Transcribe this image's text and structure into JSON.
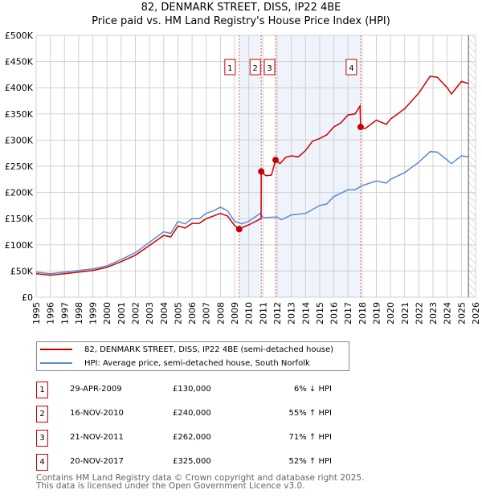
{
  "title_line1": "82, DENMARK STREET, DISS, IP22 4BE",
  "title_line2": "Price paid vs. HM Land Registry's House Price Index (HPI)",
  "chart_data": {
    "type": "line",
    "title": "82, DENMARK STREET, DISS, IP22 4BE — Price paid vs. HM Land Registry's House Price Index (HPI)",
    "xlim": [
      1995,
      2026
    ],
    "ylim": [
      0,
      500000
    ],
    "x_ticks": [
      "1995",
      "1996",
      "1997",
      "1998",
      "1999",
      "2000",
      "2001",
      "2002",
      "2003",
      "2004",
      "2005",
      "2006",
      "2007",
      "2008",
      "2009",
      "2010",
      "2011",
      "2012",
      "2013",
      "2014",
      "2015",
      "2016",
      "2017",
      "2018",
      "2019",
      "2020",
      "2021",
      "2022",
      "2023",
      "2024",
      "2025",
      "2026"
    ],
    "y_ticks": [
      {
        "v": 0,
        "label": "£0"
      },
      {
        "v": 50000,
        "label": "£50K"
      },
      {
        "v": 100000,
        "label": "£100K"
      },
      {
        "v": 150000,
        "label": "£150K"
      },
      {
        "v": 200000,
        "label": "£200K"
      },
      {
        "v": 250000,
        "label": "£250K"
      },
      {
        "v": 300000,
        "label": "£300K"
      },
      {
        "v": 350000,
        "label": "£350K"
      },
      {
        "v": 400000,
        "label": "£400K"
      },
      {
        "v": 450000,
        "label": "£450K"
      },
      {
        "v": 500000,
        "label": "£500K"
      }
    ],
    "grid": true,
    "shaded_periods": [
      [
        2009.33,
        2010.88
      ],
      [
        2011.89,
        2017.89
      ]
    ],
    "forecast_hatch_from": 2025.5,
    "series": [
      {
        "name": "82, DENMARK STREET, DISS, IP22 4BE (semi-detached house)",
        "color": "#cc0000",
        "x": [
          1995,
          1996,
          1997,
          1998,
          1999,
          2000,
          2001,
          2002,
          2003,
          2004,
          2004.5,
          2005,
          2005.5,
          2006,
          2006.5,
          2007,
          2007.5,
          2008,
          2008.5,
          2009,
          2009.33,
          2009.7,
          2010,
          2010.5,
          2010.87,
          2010.88,
          2011.2,
          2011.6,
          2011.89,
          2012.2,
          2012.6,
          2013,
          2013.5,
          2014,
          2014.5,
          2015,
          2015.5,
          2016,
          2016.5,
          2017,
          2017.5,
          2017.85,
          2017.89,
          2018.2,
          2019,
          2019.7,
          2020,
          2021,
          2022,
          2022.8,
          2023.3,
          2024,
          2024.3,
          2025,
          2025.5
        ],
        "y": [
          45000,
          42000,
          45000,
          48000,
          51000,
          57000,
          68000,
          80000,
          99000,
          118000,
          115000,
          136000,
          132000,
          141000,
          141000,
          150000,
          155000,
          160000,
          155000,
          137000,
          130000,
          135000,
          138000,
          145000,
          150000,
          240000,
          232000,
          233000,
          262000,
          255000,
          267000,
          270000,
          268000,
          280000,
          298000,
          303000,
          310000,
          325000,
          333000,
          348000,
          350000,
          365000,
          325000,
          322000,
          338000,
          330000,
          340000,
          360000,
          390000,
          422000,
          420000,
          400000,
          388000,
          412000,
          408000
        ]
      },
      {
        "name": "HPI: Average price, semi-detached house, South Norfolk",
        "color": "#5b8bd0",
        "x": [
          1995,
          1996,
          1997,
          1998,
          1999,
          2000,
          2001,
          2002,
          2003,
          2004,
          2004.5,
          2005,
          2005.5,
          2006,
          2006.5,
          2007,
          2007.5,
          2008,
          2008.5,
          2009,
          2009.5,
          2010,
          2010.8,
          2011,
          2012,
          2012.3,
          2013,
          2014,
          2015,
          2015.5,
          2016,
          2017,
          2017.5,
          2018,
          2019,
          2019.7,
          2020,
          2021,
          2022,
          2022.8,
          2023.3,
          2024,
          2024.3,
          2025,
          2025.5
        ],
        "y": [
          48000,
          45000,
          48000,
          51000,
          54000,
          60000,
          72000,
          85000,
          105000,
          125000,
          122000,
          145000,
          140000,
          150000,
          150000,
          160000,
          165000,
          172000,
          165000,
          145000,
          140000,
          145000,
          160000,
          152000,
          153000,
          148000,
          157000,
          160000,
          175000,
          178000,
          192000,
          205000,
          205000,
          213000,
          222000,
          218000,
          225000,
          238000,
          258000,
          278000,
          277000,
          262000,
          255000,
          270000,
          268000
        ]
      }
    ],
    "sales": [
      {
        "n": "1",
        "x": 2009.33,
        "y": 130000
      },
      {
        "n": "2",
        "x": 2010.88,
        "y": 240000
      },
      {
        "n": "3",
        "x": 2011.89,
        "y": 262000
      },
      {
        "n": "4",
        "x": 2017.89,
        "y": 325000
      }
    ]
  },
  "legend": [
    {
      "label": "82, DENMARK STREET, DISS, IP22 4BE (semi-detached house)",
      "color": "#cc0000"
    },
    {
      "label": "HPI: Average price, semi-detached house, South Norfolk",
      "color": "#5b8bd0"
    }
  ],
  "table": [
    {
      "n": "1",
      "date": "29-APR-2009",
      "price": "£130,000",
      "hpi": "6% ↓ HPI"
    },
    {
      "n": "2",
      "date": "16-NOV-2010",
      "price": "£240,000",
      "hpi": "55% ↑ HPI"
    },
    {
      "n": "3",
      "date": "21-NOV-2011",
      "price": "£262,000",
      "hpi": "71% ↑ HPI"
    },
    {
      "n": "4",
      "date": "20-NOV-2017",
      "price": "£325,000",
      "hpi": "52% ↑ HPI"
    }
  ],
  "footer_line1": "Contains HM Land Registry data © Crown copyright and database right 2025.",
  "footer_line2": "This data is licensed under the Open Government Licence v3.0."
}
